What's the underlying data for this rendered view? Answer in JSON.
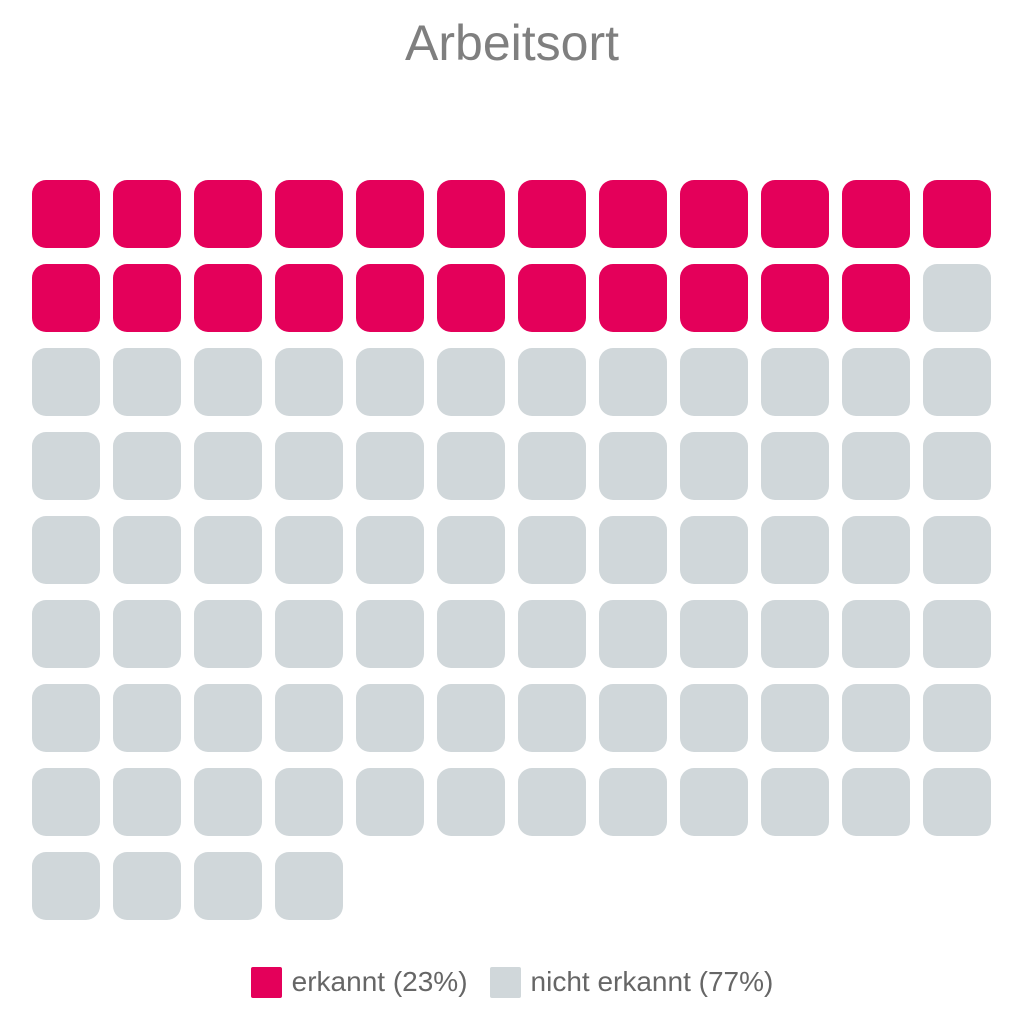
{
  "chart_data": {
    "type": "waffle",
    "title": "Arbeitsort",
    "total_cells": 100,
    "columns": 12,
    "series": [
      {
        "name": "erkannt",
        "value": 23,
        "percent_label": "(23%)",
        "color": "#e4005a"
      },
      {
        "name": "nicht erkannt",
        "value": 77,
        "percent_label": "(77%)",
        "color": "#d0d7da"
      }
    ],
    "legend": {
      "position": "bottom-center",
      "entries": [
        "erkannt (23%)",
        "nicht erkannt (77%)"
      ]
    }
  }
}
